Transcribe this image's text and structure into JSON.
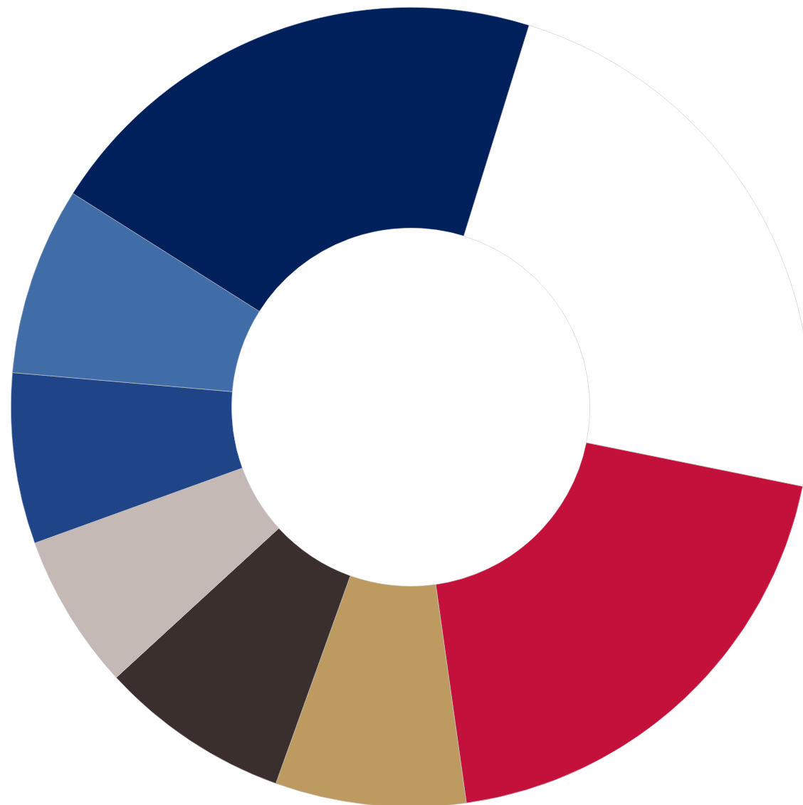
{
  "chart_data": {
    "type": "donut",
    "categories": [
      null,
      null,
      null,
      null,
      null,
      null,
      null,
      null
    ],
    "values": [
      23.4,
      19.6,
      7.7,
      7.7,
      6.3,
      6.9,
      7.6,
      20.8
    ],
    "colors": [
      "#ffffff",
      "#c4113b",
      "#bd9a5f",
      "#3a2f2c",
      "#c4b9b4",
      "#1f4588",
      "#406ca7",
      "#00205b"
    ],
    "legend": false
  }
}
